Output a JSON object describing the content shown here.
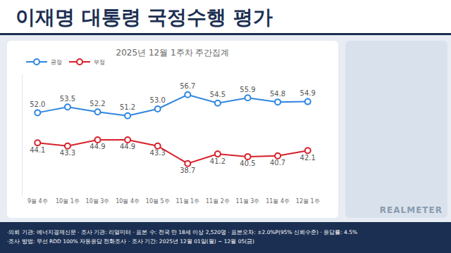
{
  "chart_data": {
    "type": "line",
    "title": "이재명 대통령 국정수행 평가",
    "subtitle": "2025년 12월 1주차 주간집계",
    "categories": [
      "9월 4주",
      "10월 1주",
      "10월 3주",
      "10월 4주",
      "10월 5주",
      "11월 1주",
      "11월 2주",
      "11월 3주",
      "11월 4주",
      "12월 1주"
    ],
    "series": [
      {
        "name": "긍정",
        "color": "#2f86de",
        "marker": "circle",
        "values": [
          52.0,
          53.5,
          52.2,
          51.2,
          53.0,
          56.7,
          54.5,
          55.9,
          54.8,
          54.9
        ],
        "value_labels": [
          "52.0",
          "53.5",
          "52.2",
          "51.2",
          "53.0",
          "56.7",
          "54.5",
          "55.9",
          "54.8",
          "54.9"
        ]
      },
      {
        "name": "부정",
        "color": "#d7202a",
        "marker": "circle",
        "values": [
          44.1,
          43.3,
          44.9,
          44.9,
          43.3,
          38.7,
          41.2,
          40.5,
          40.7,
          42.1
        ],
        "value_labels": [
          "44.1",
          "43.3",
          "44.9",
          "44.9",
          "43.3",
          "38.7",
          "41.2",
          "40.5",
          "40.7",
          "42.1"
        ]
      }
    ],
    "ylim": [
      30,
      62
    ],
    "yticks": [],
    "grid": false,
    "legend": "top left",
    "data_labels": true,
    "tick_labels": "x"
  },
  "footer": [
    "·의뢰 기관: 에너지경제신문 · 조사 기관: 리얼미터 · 표본 수: 전국 만 18세 이상 2,520명 · 표본오차: ±2.0%P(95% 신뢰수준) · 응답률: 4.5%",
    "·조사 방법: 무선 RDD 100% 자동응답 전화조사 · 조사 기간: 2025년 12월 01일(월) ~ 12월 05(금)"
  ],
  "brand": "REALMETER"
}
